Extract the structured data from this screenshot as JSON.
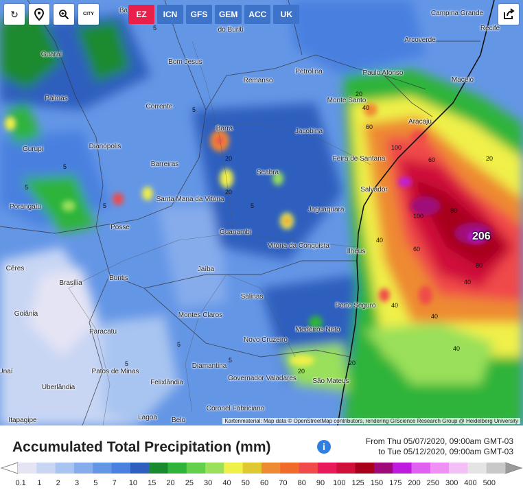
{
  "toolbar": {
    "reload_icon": "reload-icon",
    "locate_icon": "map-pin-icon",
    "zoom_icon": "zoom-icon",
    "city_label": "CITY",
    "share_icon": "share-icon"
  },
  "models": [
    {
      "label": "EZ",
      "active": true
    },
    {
      "label": "ICN",
      "active": false
    },
    {
      "label": "GFS",
      "active": false
    },
    {
      "label": "GEM",
      "active": false
    },
    {
      "label": "ACC",
      "active": false
    },
    {
      "label": "UK",
      "active": false
    }
  ],
  "cities": [
    "Guaraí",
    "Palmas",
    "Gurupi",
    "Dianópolis",
    "Porangatu",
    "Posse",
    "Barreiras",
    "Bom Jesus",
    "Corrente",
    "Barra",
    "Remanso",
    "Petrolina",
    "Paulo Afonso",
    "Jacobina",
    "Seabra",
    "Monte Santo",
    "Feira de Santana",
    "Aracaju",
    "Salvador",
    "Maceió",
    "Recife",
    "Campina Grande",
    "Arcoverde",
    "Santa Maria da Vitória",
    "Guanambi",
    "Jaguaquara",
    "Vitória da Conquista",
    "Ilhéus",
    "Jaíba",
    "Buritis",
    "Brasília",
    "Cêres",
    "Goiânia",
    "Paracatu",
    "Montes Claros",
    "Salinas",
    "Porto Seguro",
    "Medeiros Neto",
    "Novo Cruzeiro",
    "Diamantina",
    "Patos de Minas",
    "Unaí",
    "Uberlândia",
    "Felixlândia",
    "Governador Valadares",
    "São Mateus",
    "Coronel Fabriciano",
    "Lagoa",
    "Itapagipe",
    "Belo",
    "Ba",
    "do Buriti"
  ],
  "isolines": [
    "5",
    "20",
    "40",
    "60",
    "80",
    "100"
  ],
  "max_value": "206",
  "attribution": "Kartenmaterial: Map data © OpenStreetMap contributors, rendering GIScience Research Group @ Heidelberg University",
  "legend": {
    "title": "Accumulated Total Precipitation (mm)",
    "from": "From Thu 05/07/2020, 09:00am GMT-03",
    "to": "to Tue 05/12/2020, 09:00am GMT-03",
    "info_icon": "info-icon",
    "labels": [
      "0.1",
      "1",
      "2",
      "3",
      "5",
      "7",
      "10",
      "15",
      "20",
      "25",
      "30",
      "40",
      "50",
      "60",
      "70",
      "80",
      "90",
      "100",
      "125",
      "150",
      "175",
      "200",
      "250",
      "300",
      "400",
      "500"
    ],
    "colors": [
      "#e4e4f4",
      "#c8d6f4",
      "#a8c4f0",
      "#86acec",
      "#6496e6",
      "#4a80e0",
      "#2e5fbe",
      "#1a8a2e",
      "#2eb43a",
      "#62d04a",
      "#9ae05a",
      "#f0f04a",
      "#e0c832",
      "#ee8a32",
      "#f06a2a",
      "#f04a4a",
      "#e81a5a",
      "#d0103a",
      "#a8001a",
      "#a00a78",
      "#c01ae0",
      "#e060f0",
      "#f090f4",
      "#f4bff6",
      "#e4e4e4",
      "#c8c8c8"
    ]
  }
}
